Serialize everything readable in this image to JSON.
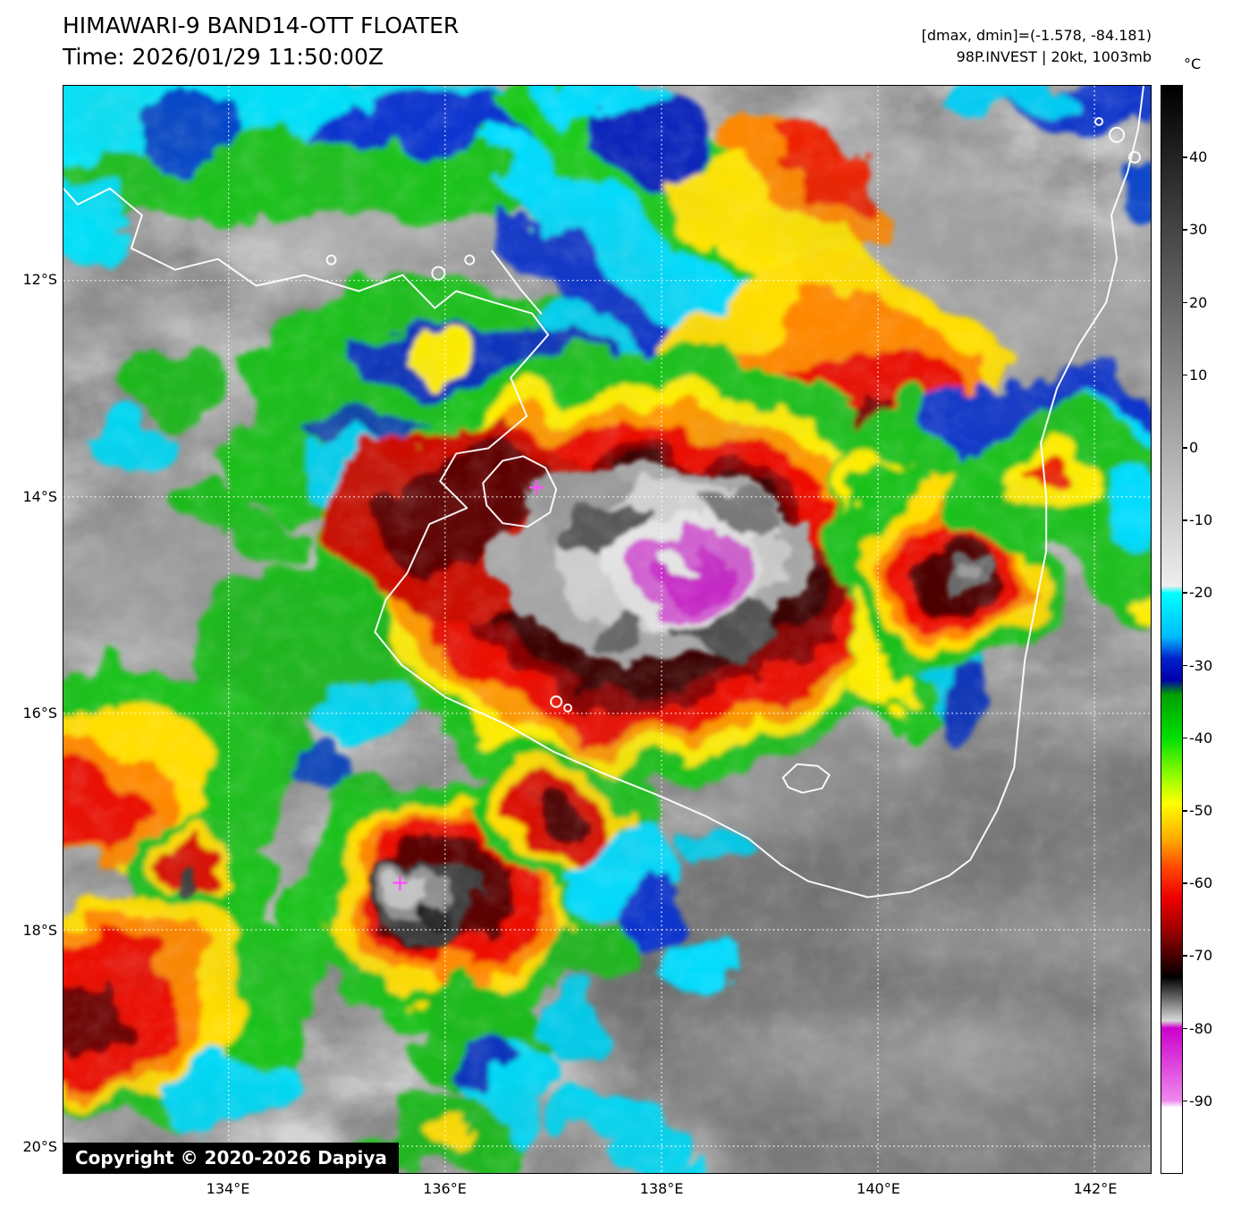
{
  "header": {
    "title": "HIMAWARI-9 BAND14-OTT FLOATER",
    "time_line": "Time: 2026/01/29 11:50:00Z",
    "dmax_dmin": "[dmax, dmin]=(-1.578, -84.181)",
    "storm_info": "98P.INVEST | 20kt, 1003mb"
  },
  "map": {
    "copyright": "Copyright © 2020-2026 Dapiya",
    "lat_labels": [
      "12°S",
      "14°S",
      "16°S",
      "18°S",
      "20°S"
    ],
    "lon_labels": [
      "134°E",
      "136°E",
      "138°E",
      "140°E",
      "142°E"
    ]
  },
  "colorbar": {
    "unit": "°C",
    "domain": [
      50,
      -100
    ],
    "ticks": [
      40,
      30,
      20,
      10,
      0,
      -10,
      -20,
      -30,
      -40,
      -50,
      -60,
      -70,
      -80,
      -90
    ],
    "stops": [
      {
        "t": 50,
        "color": "#000000"
      },
      {
        "t": -19,
        "color": "#eeeeee"
      },
      {
        "t": -20,
        "color": "#00ffff"
      },
      {
        "t": -26,
        "color": "#00bbff"
      },
      {
        "t": -29,
        "color": "#0022cc"
      },
      {
        "t": -32,
        "color": "#0000aa"
      },
      {
        "t": -34,
        "color": "#00a000"
      },
      {
        "t": -40,
        "color": "#00e000"
      },
      {
        "t": -46,
        "color": "#aaff00"
      },
      {
        "t": -49,
        "color": "#ffff00"
      },
      {
        "t": -54,
        "color": "#ffaa00"
      },
      {
        "t": -58,
        "color": "#ff4400"
      },
      {
        "t": -62,
        "color": "#ee0000"
      },
      {
        "t": -66,
        "color": "#a80000"
      },
      {
        "t": -70,
        "color": "#4a0000"
      },
      {
        "t": -73,
        "color": "#000000"
      },
      {
        "t": -79,
        "color": "#d8d8d8"
      },
      {
        "t": -80,
        "color": "#cc00cc"
      },
      {
        "t": -90,
        "color": "#ee88ee"
      },
      {
        "t": -91,
        "color": "#ffffff"
      },
      {
        "t": -100,
        "color": "#ffffff"
      }
    ]
  }
}
